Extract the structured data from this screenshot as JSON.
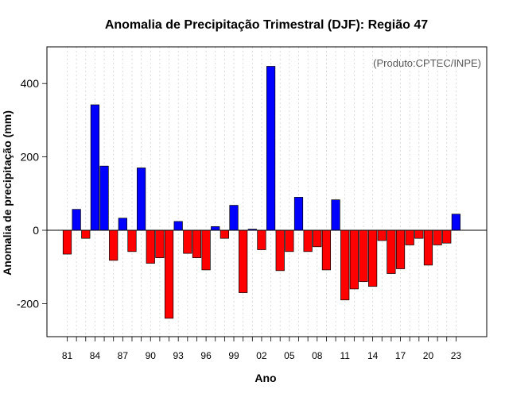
{
  "chart_data": {
    "type": "bar",
    "title": "Anomalia de Precipitação Trimestral (DJF): Região 47",
    "xlabel": "Ano",
    "ylabel": "Anomalia de precipitação (mm)",
    "credit": "(Produto:CPTEC/INPE)",
    "ylim": [
      -290,
      500
    ],
    "yticks": [
      -200,
      0,
      200,
      400
    ],
    "grid": true,
    "tick_labels": [
      "81",
      "84",
      "87",
      "90",
      "93",
      "96",
      "99",
      "02",
      "05",
      "08",
      "11",
      "14",
      "17",
      "20",
      "23"
    ],
    "categories": [
      "81",
      "82",
      "83",
      "84",
      "85",
      "86",
      "87",
      "88",
      "89",
      "90",
      "91",
      "92",
      "93",
      "94",
      "95",
      "96",
      "97",
      "98",
      "99",
      "00",
      "01",
      "02",
      "03",
      "04",
      "05",
      "06",
      "07",
      "08",
      "09",
      "10",
      "11",
      "12",
      "13",
      "14",
      "15",
      "16",
      "17",
      "18",
      "19",
      "20",
      "21",
      "22",
      "23"
    ],
    "values": [
      -65,
      57,
      -22,
      342,
      175,
      -82,
      33,
      -58,
      170,
      -90,
      -75,
      -240,
      24,
      -63,
      -75,
      -108,
      10,
      -22,
      68,
      -170,
      3,
      -53,
      447,
      -110,
      -58,
      90,
      -58,
      -45,
      -108,
      83,
      -190,
      -160,
      -140,
      -153,
      -28,
      -118,
      -105,
      -40,
      -22,
      -95,
      -40,
      -35,
      44
    ],
    "colors": {
      "positive": "#0000ff",
      "negative": "#ff0000",
      "zero_line": "#000000",
      "grid": "#d3d3d3"
    }
  }
}
